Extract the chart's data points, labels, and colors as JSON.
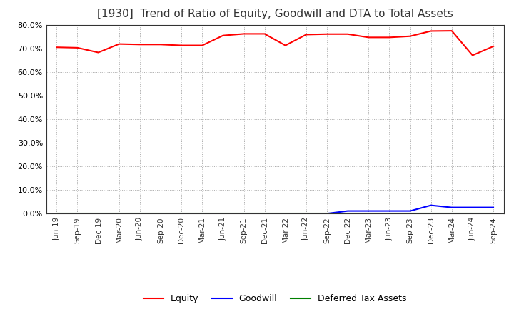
{
  "title": "[1930]  Trend of Ratio of Equity, Goodwill and DTA to Total Assets",
  "x_labels": [
    "Jun-19",
    "Sep-19",
    "Dec-19",
    "Mar-20",
    "Jun-20",
    "Sep-20",
    "Dec-20",
    "Mar-21",
    "Jun-21",
    "Sep-21",
    "Dec-21",
    "Mar-22",
    "Jun-22",
    "Sep-22",
    "Dec-22",
    "Mar-23",
    "Jun-23",
    "Sep-23",
    "Dec-23",
    "Mar-24",
    "Jun-24",
    "Sep-24"
  ],
  "equity": [
    0.706,
    0.704,
    0.684,
    0.72,
    0.718,
    0.718,
    0.714,
    0.714,
    0.756,
    0.763,
    0.763,
    0.714,
    0.76,
    0.762,
    0.762,
    0.748,
    0.748,
    0.753,
    0.775,
    0.776,
    0.672,
    0.71
  ],
  "goodwill": [
    0.0,
    0.0,
    0.0,
    0.0,
    0.0,
    0.0,
    0.0,
    0.0,
    0.0,
    0.0,
    0.0,
    0.0,
    0.0,
    0.0,
    0.011,
    0.011,
    0.011,
    0.011,
    0.035,
    0.026,
    0.026,
    0.026
  ],
  "dta": [
    0.0,
    0.0,
    0.0,
    0.0,
    0.0,
    0.0,
    0.0,
    0.0,
    0.0,
    0.0,
    0.0,
    0.0,
    0.0,
    0.0,
    0.0,
    0.0,
    0.0,
    0.0,
    0.0,
    0.0,
    0.0,
    0.0
  ],
  "equity_color": "#ff0000",
  "goodwill_color": "#0000ff",
  "dta_color": "#008000",
  "ylim": [
    0.0,
    0.8
  ],
  "yticks": [
    0.0,
    0.1,
    0.2,
    0.3,
    0.4,
    0.5,
    0.6,
    0.7,
    0.8
  ],
  "background_color": "#ffffff",
  "grid_color": "#aaaaaa",
  "title_fontsize": 11,
  "legend_labels": [
    "Equity",
    "Goodwill",
    "Deferred Tax Assets"
  ]
}
